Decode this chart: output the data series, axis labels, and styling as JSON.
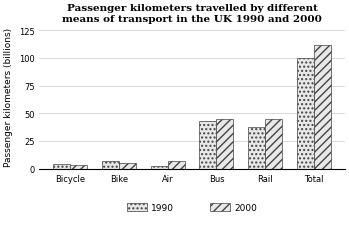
{
  "title": "Passenger kilometers travelled by different\nmeans of transport in the UK 1990 and 2000",
  "categories": [
    "Bicycle",
    "Bike",
    "Air",
    "Bus",
    "Rail",
    "Total"
  ],
  "values_1990": [
    4,
    7,
    2,
    43,
    38,
    100
  ],
  "values_2000": [
    3,
    5,
    7,
    45,
    45,
    112
  ],
  "ylabel": "Passenger kilometers (billions)",
  "ylim": [
    0,
    130
  ],
  "yticks": [
    0,
    25,
    50,
    75,
    100,
    125
  ],
  "bar_width": 0.35,
  "legend_labels": [
    "1990",
    "2000"
  ],
  "hatch_1990": "....",
  "hatch_2000": "////",
  "bar_color": "#e8e8e8",
  "edge_color": "#444444",
  "bg_color": "#ffffff",
  "title_fontsize": 7.5,
  "axis_fontsize": 6.5,
  "tick_fontsize": 6,
  "legend_fontsize": 6.5
}
